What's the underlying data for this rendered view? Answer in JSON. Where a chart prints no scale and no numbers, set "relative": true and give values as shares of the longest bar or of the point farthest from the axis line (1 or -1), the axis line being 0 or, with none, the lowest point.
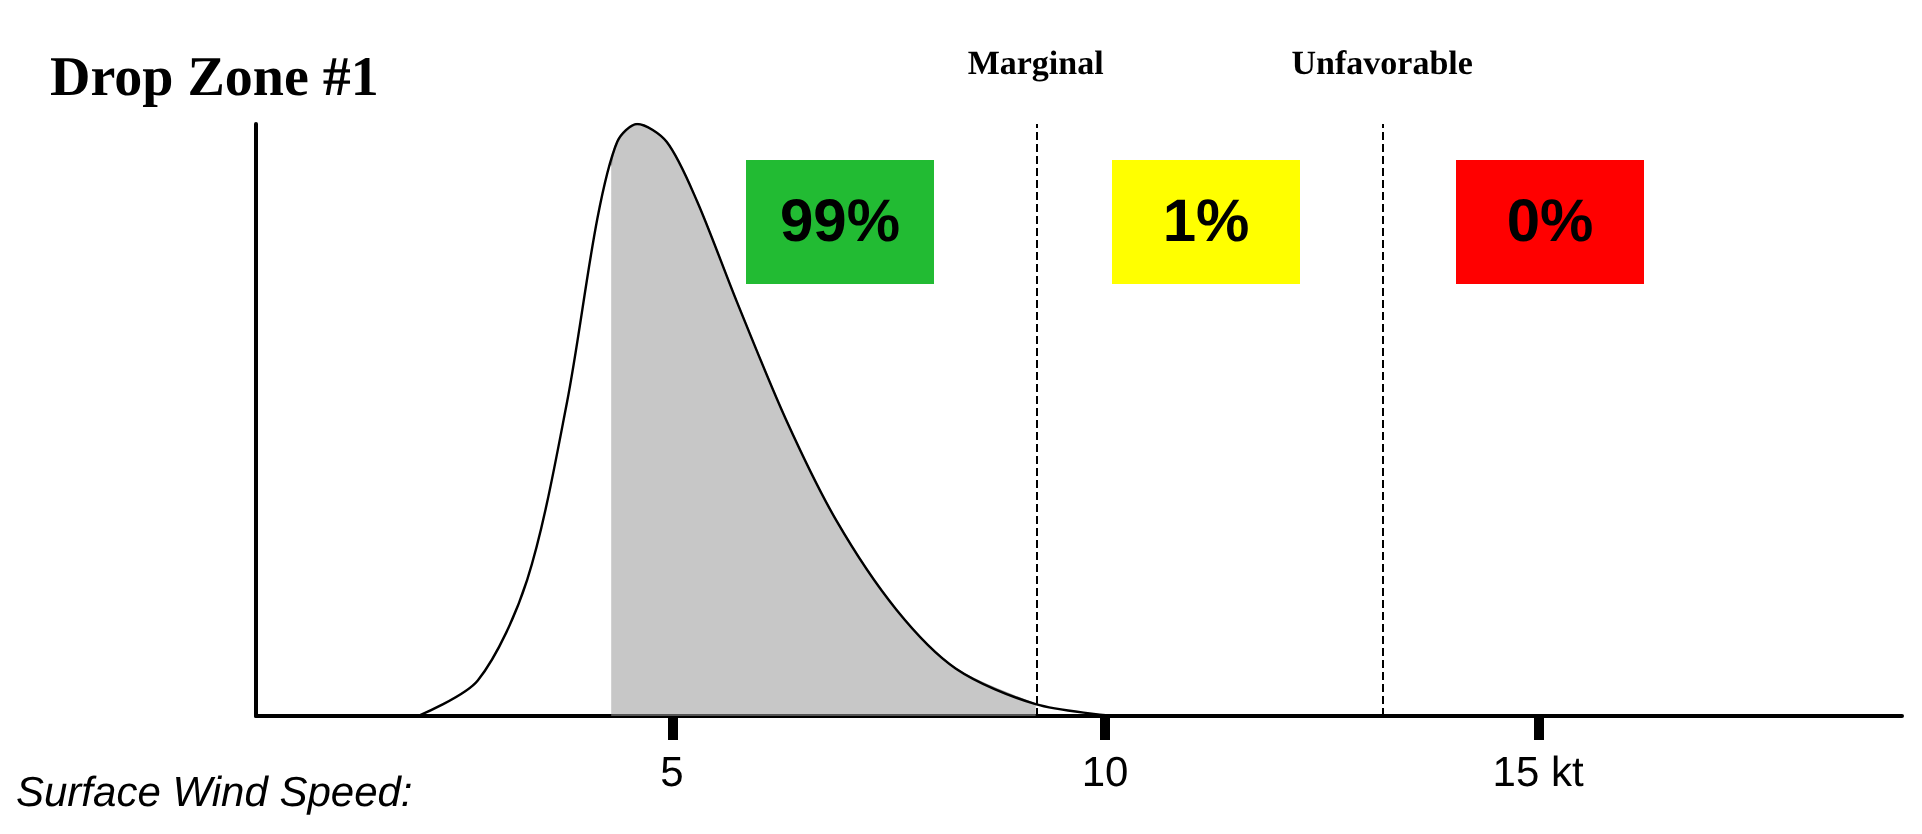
{
  "chart_data": {
    "type": "line",
    "title": "Drop Zone #1",
    "xlabel": "Surface Wind Speed:",
    "relative": true,
    "xlim": [
      0.2,
      19.2
    ],
    "xticks": [
      5,
      10,
      {
        "value": 15,
        "label": "15 kt"
      }
    ],
    "series": [
      {
        "type": "line",
        "color": "#000000",
        "x": [
          2.07,
          2.76,
          3.33,
          3.79,
          4.14,
          4.37,
          4.6,
          4.94,
          5.29,
          5.75,
          6.32,
          6.9,
          7.59,
          8.28,
          9.2,
          10.11
        ],
        "values": [
          0,
          0.06,
          0.23,
          0.53,
          0.84,
          0.97,
          1,
          0.97,
          0.87,
          0.7,
          0.5,
          0.33,
          0.18,
          0.08,
          0.02,
          0
        ]
      },
      {
        "type": "area",
        "color": "#999999",
        "x": [
          4.3,
          4.37,
          4.6,
          4.94,
          5.29,
          5.75,
          6.32,
          6.9,
          7.59,
          8.28,
          9.2
        ],
        "values": [
          0.93,
          0.97,
          1,
          0.97,
          0.87,
          0.7,
          0.5,
          0.33,
          0.18,
          0.08,
          0.02
        ]
      }
    ],
    "ref_lines": [
      {
        "axis": "x",
        "value": 9.2,
        "label": "Marginal",
        "line_style": "dashed"
      },
      {
        "axis": "x",
        "value": 13.2,
        "label": "Unfavorable",
        "line_style": "dashed"
      }
    ],
    "annotations": [
      "99%",
      "1%",
      "0%"
    ],
    "grid": false,
    "marker": "none",
    "line_style": "solid"
  }
}
